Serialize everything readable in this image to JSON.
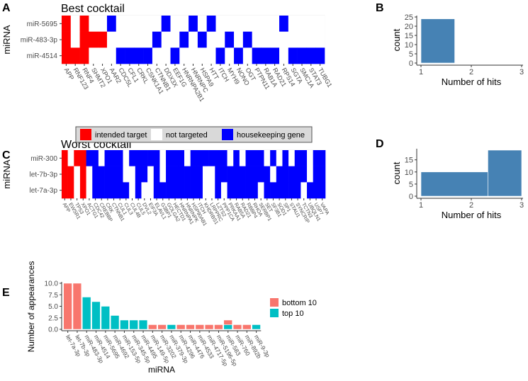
{
  "chart_data": [
    {
      "panel": "A",
      "type": "heatmap",
      "title": "Best cocktail",
      "ylabel": "miRNA",
      "rows": [
        "miR-5695",
        "miR-483-3p",
        "miR-4514"
      ],
      "columns": [
        "APP",
        "RNF123",
        "RNF4",
        "SHMT2",
        "XPO1",
        "AAR2",
        "CDC5L",
        "CFL1",
        "CRKL",
        "CSNK1A1",
        "CTNNB1",
        "DDX3X",
        "EEF1G",
        "HNRNPA2B1",
        "HNRNPC",
        "HSPA9",
        "HTT",
        "ITCH",
        "MYH9",
        "NONO",
        "OGT",
        "PTPN11",
        "RAB1A",
        "RAD21",
        "RPS14",
        "SGTA",
        "SMC1A",
        "STAT3",
        "TUBG1"
      ],
      "values_legend": {
        "2": "intended target",
        "0": "not targeted",
        "1": "housekeeping gene"
      },
      "matrix": [
        [
          2,
          0,
          2,
          0,
          0,
          1,
          0,
          0,
          0,
          0,
          0,
          1,
          0,
          0,
          1,
          0,
          1,
          0,
          0,
          0,
          0,
          0,
          0,
          0,
          1,
          0,
          0,
          0,
          0
        ],
        [
          2,
          0,
          2,
          2,
          2,
          0,
          0,
          0,
          0,
          0,
          1,
          0,
          0,
          1,
          0,
          1,
          0,
          0,
          1,
          0,
          1,
          0,
          0,
          0,
          0,
          0,
          0,
          0,
          0
        ],
        [
          2,
          2,
          2,
          0,
          0,
          0,
          1,
          1,
          1,
          1,
          0,
          0,
          1,
          0,
          0,
          0,
          0,
          1,
          0,
          1,
          0,
          1,
          1,
          1,
          0,
          1,
          1,
          1,
          1
        ]
      ]
    },
    {
      "panel": "B",
      "type": "bar",
      "subtype": "histogram",
      "xlabel": "Number of hits",
      "ylabel": "count",
      "xlim": [
        1,
        3
      ],
      "ylim": [
        0,
        25
      ],
      "xticks": [
        1,
        2,
        3
      ],
      "yticks": [
        0,
        5,
        10,
        15,
        20,
        25
      ],
      "bins": [
        {
          "from": 1,
          "to": 1.67,
          "count": 24
        }
      ]
    },
    {
      "panel": "C",
      "type": "heatmap",
      "title": "Worst cocktail",
      "ylabel": "miRNA",
      "rows": [
        "miR-300",
        "let-7b-3p",
        "let-7a-3p"
      ],
      "columns": [
        "APP",
        "EWSR1",
        "TP53",
        "XPO1",
        "ACTG1",
        "CDC42",
        "CREBBP",
        "CRK",
        "CTNNB1",
        "CUL1",
        "CUL3",
        "CUL4B",
        "CUL5",
        "DVL2",
        "EIF3A",
        "ELAVL1",
        "G3BP1",
        "GOLGA2",
        "HECTD1",
        "HNRNPA1",
        "HNRNPK",
        "HSP90AB1",
        "ITCH",
        "KHDRBS1",
        "LRPPRC",
        "LZTS2",
        "PPP1CA",
        "PRKAA1",
        "RAB5A",
        "RAD21",
        "RBBP4",
        "RHOA",
        "SERBP1",
        "SET",
        "SF3B1",
        "SOD1",
        "SP1",
        "STAU1",
        "SYNCRIP",
        "TCTN3",
        "UBQLN1",
        "USP7",
        "VAPA"
      ],
      "values_legend": {
        "2": "intended target",
        "0": "not targeted",
        "1": "housekeeping gene"
      },
      "matrix": [
        [
          2,
          0,
          2,
          2,
          1,
          1,
          0,
          1,
          1,
          1,
          0,
          1,
          1,
          1,
          1,
          1,
          0,
          1,
          1,
          1,
          0,
          1,
          1,
          1,
          1,
          1,
          1,
          0,
          1,
          0,
          1,
          1,
          1,
          0,
          1,
          0,
          1,
          0,
          1,
          1,
          0,
          1,
          1
        ],
        [
          2,
          2,
          0,
          2,
          0,
          1,
          1,
          1,
          1,
          1,
          0,
          0,
          1,
          1,
          0,
          1,
          0,
          1,
          1,
          1,
          1,
          1,
          1,
          0,
          0,
          1,
          1,
          1,
          1,
          1,
          1,
          1,
          1,
          1,
          0,
          1,
          1,
          1,
          1,
          1,
          0,
          1,
          1
        ],
        [
          2,
          2,
          0,
          2,
          0,
          1,
          1,
          1,
          1,
          1,
          1,
          0,
          1,
          0,
          0,
          1,
          1,
          1,
          1,
          1,
          1,
          1,
          1,
          0,
          0,
          1,
          0,
          1,
          1,
          1,
          1,
          1,
          0,
          1,
          1,
          1,
          1,
          1,
          1,
          0,
          1,
          1,
          1
        ]
      ]
    },
    {
      "panel": "D",
      "type": "bar",
      "subtype": "histogram",
      "xlabel": "Number of hits",
      "ylabel": "count",
      "xlim": [
        1,
        3
      ],
      "ylim": [
        0,
        19
      ],
      "xticks": [
        1,
        2,
        3
      ],
      "yticks": [
        0,
        5,
        10,
        15
      ],
      "bins": [
        {
          "from": 1,
          "to": 2.33,
          "count": 10
        },
        {
          "from": 2.33,
          "to": 3,
          "count": 19
        }
      ]
    },
    {
      "panel": "E",
      "type": "bar",
      "subtype": "stacked",
      "xlabel": "miRNA",
      "ylabel": "Number of appearances",
      "ylim": [
        0,
        10
      ],
      "yticks": [
        "0.0",
        "2.5",
        "5.0",
        "7.5",
        "10.0"
      ],
      "legend_position": "right",
      "categories": [
        "let-7a-3p",
        "let-7b-3p",
        "miR-483-3p",
        "miR-4514",
        "miR-5695",
        "miR-4692",
        "miR-153-5p",
        "miR-345-5p",
        "miR-4495",
        "miR-149-5p",
        "miR-3202",
        "miR-379-3p",
        "miR-4296",
        "miR-4476",
        "miR-4533",
        "miR-4717-5p",
        "miR-5196-5p",
        "miR-583",
        "miR-760",
        "miR-892b",
        "miR-9-3p"
      ],
      "series": [
        {
          "name": "bottom 10",
          "color": "#f8766d",
          "values": [
            10,
            10,
            0,
            0,
            0,
            0,
            0,
            0,
            0,
            1,
            1,
            0,
            1,
            1,
            1,
            1,
            1,
            1,
            1,
            1,
            0
          ]
        },
        {
          "name": "top 10",
          "color": "#00bfc4",
          "values": [
            0,
            0,
            7,
            6,
            5,
            3,
            2,
            2,
            2,
            0,
            0,
            1,
            0,
            0,
            0,
            0,
            0,
            1,
            0,
            0,
            1
          ]
        }
      ]
    }
  ],
  "legend": {
    "items": [
      {
        "label": "intended target",
        "color": "#ff0000"
      },
      {
        "label": "not targeted",
        "color": "#ffffff"
      },
      {
        "label": "housekeeping gene",
        "color": "#0000ff"
      }
    ]
  },
  "panel_letters": [
    "A",
    "B",
    "C",
    "D",
    "E"
  ],
  "colors": {
    "intended": "#ff0000",
    "none": "#ffffff",
    "housekeeping": "#0000ff",
    "hist": "#4682b4"
  }
}
